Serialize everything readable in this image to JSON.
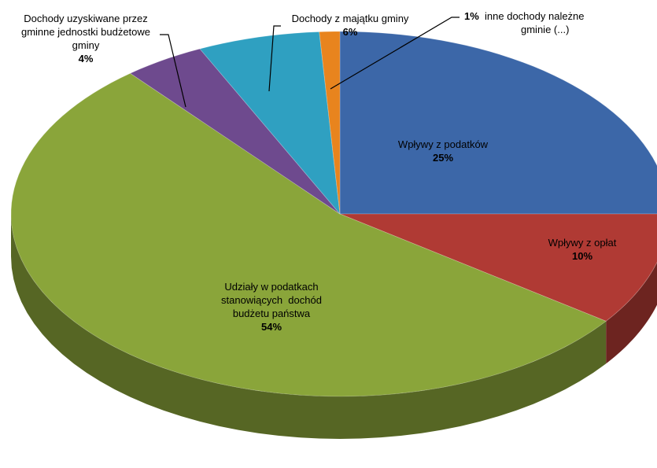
{
  "chart_data": {
    "type": "pie",
    "variant": "3d",
    "slices": [
      {
        "name": "Wpływy z podatków",
        "value": 25,
        "label": "25%",
        "color": "#3C67A8"
      },
      {
        "name": "Wpływy z opłat",
        "value": 10,
        "label": "10%",
        "color": "#B03A34"
      },
      {
        "name": "Udziały w podatkach stanowiących dochód budżetu państwa",
        "lines": [
          "Udziały w podatkach",
          "stanowiących  dochód",
          "budżetu państwa"
        ],
        "value": 54,
        "label": "54%",
        "color": "#8AA53A"
      },
      {
        "name": "Dochody uzyskiwane przez gminne jednostki budżetowe gminy",
        "lines": [
          "Dochody uzyskiwane przez",
          "gminne jednostki budżetowe",
          "gminy"
        ],
        "value": 4,
        "label": "4%",
        "color": "#6E4A8E"
      },
      {
        "name": "Dochody z majątku gminy",
        "value": 6,
        "label": "6%",
        "color": "#2FA0C1"
      },
      {
        "name": "inne dochody należne gminie (...)",
        "lines": [
          "inne dochody należne",
          "gminie (...)"
        ],
        "value": 1,
        "label": "1%",
        "color": "#E8841E"
      }
    ]
  }
}
